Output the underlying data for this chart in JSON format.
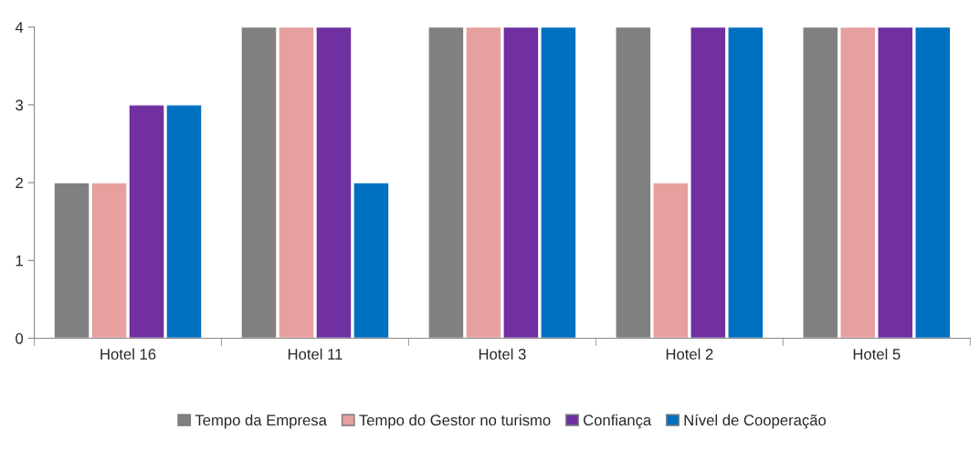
{
  "chart_data": {
    "type": "bar",
    "categories": [
      "Hotel 16",
      "Hotel 11",
      "Hotel 3",
      "Hotel 2",
      "Hotel 5"
    ],
    "series": [
      {
        "name": "Tempo da Empresa",
        "color": "#808080",
        "values": [
          2,
          4,
          4,
          4,
          4
        ]
      },
      {
        "name": "Tempo do Gestor no turismo",
        "color": "#e6a09e",
        "values": [
          2,
          4,
          4,
          2,
          4
        ]
      },
      {
        "name": "Confiança",
        "color": "#7030a0",
        "values": [
          3,
          4,
          4,
          4,
          4
        ]
      },
      {
        "name": "Nível de Cooperação",
        "color": "#0070c0",
        "values": [
          3,
          2,
          4,
          4,
          4
        ]
      }
    ],
    "ylim": [
      0,
      4
    ],
    "yticks": [
      0,
      1,
      2,
      3,
      4
    ],
    "grid": false,
    "legend": "bottom"
  }
}
